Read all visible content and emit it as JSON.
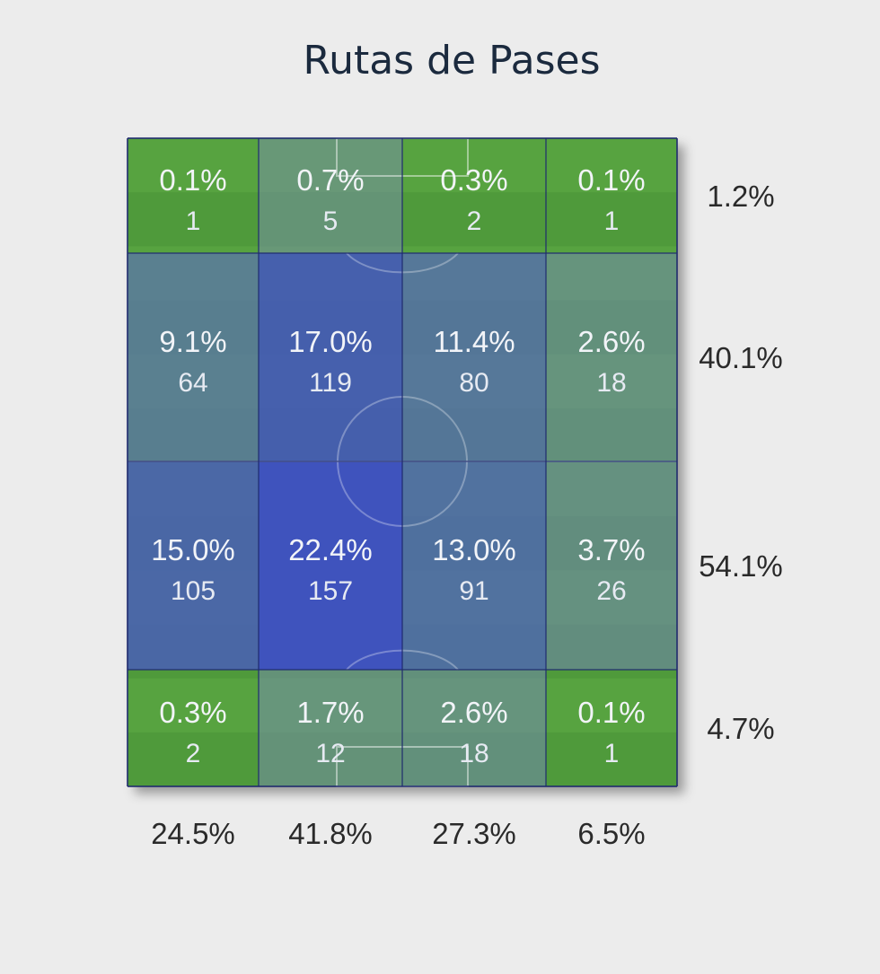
{
  "chart_data": {
    "type": "heatmap",
    "title": "Rutas de Pases",
    "rows": 4,
    "cols": 4,
    "cells": [
      [
        {
          "pct": "0.1%",
          "count": 1
        },
        {
          "pct": "0.7%",
          "count": 5
        },
        {
          "pct": "0.3%",
          "count": 2
        },
        {
          "pct": "0.1%",
          "count": 1
        }
      ],
      [
        {
          "pct": "9.1%",
          "count": 64
        },
        {
          "pct": "17.0%",
          "count": 119
        },
        {
          "pct": "11.4%",
          "count": 80
        },
        {
          "pct": "2.6%",
          "count": 18
        }
      ],
      [
        {
          "pct": "15.0%",
          "count": 105
        },
        {
          "pct": "22.4%",
          "count": 157
        },
        {
          "pct": "13.0%",
          "count": 91
        },
        {
          "pct": "3.7%",
          "count": 26
        }
      ],
      [
        {
          "pct": "0.3%",
          "count": 2
        },
        {
          "pct": "1.7%",
          "count": 12
        },
        {
          "pct": "2.6%",
          "count": 18
        },
        {
          "pct": "0.1%",
          "count": 1
        }
      ]
    ],
    "row_totals": [
      "1.2%",
      "40.1%",
      "54.1%",
      "4.7%"
    ],
    "col_totals": [
      "24.5%",
      "41.8%",
      "27.3%",
      "6.5%"
    ],
    "colors": {
      "pitch_green": "#4f9a3a",
      "pitch_green_light": "#5fab46",
      "high_intensity": "#3e4fc4",
      "line": "#1f2a6e"
    }
  }
}
